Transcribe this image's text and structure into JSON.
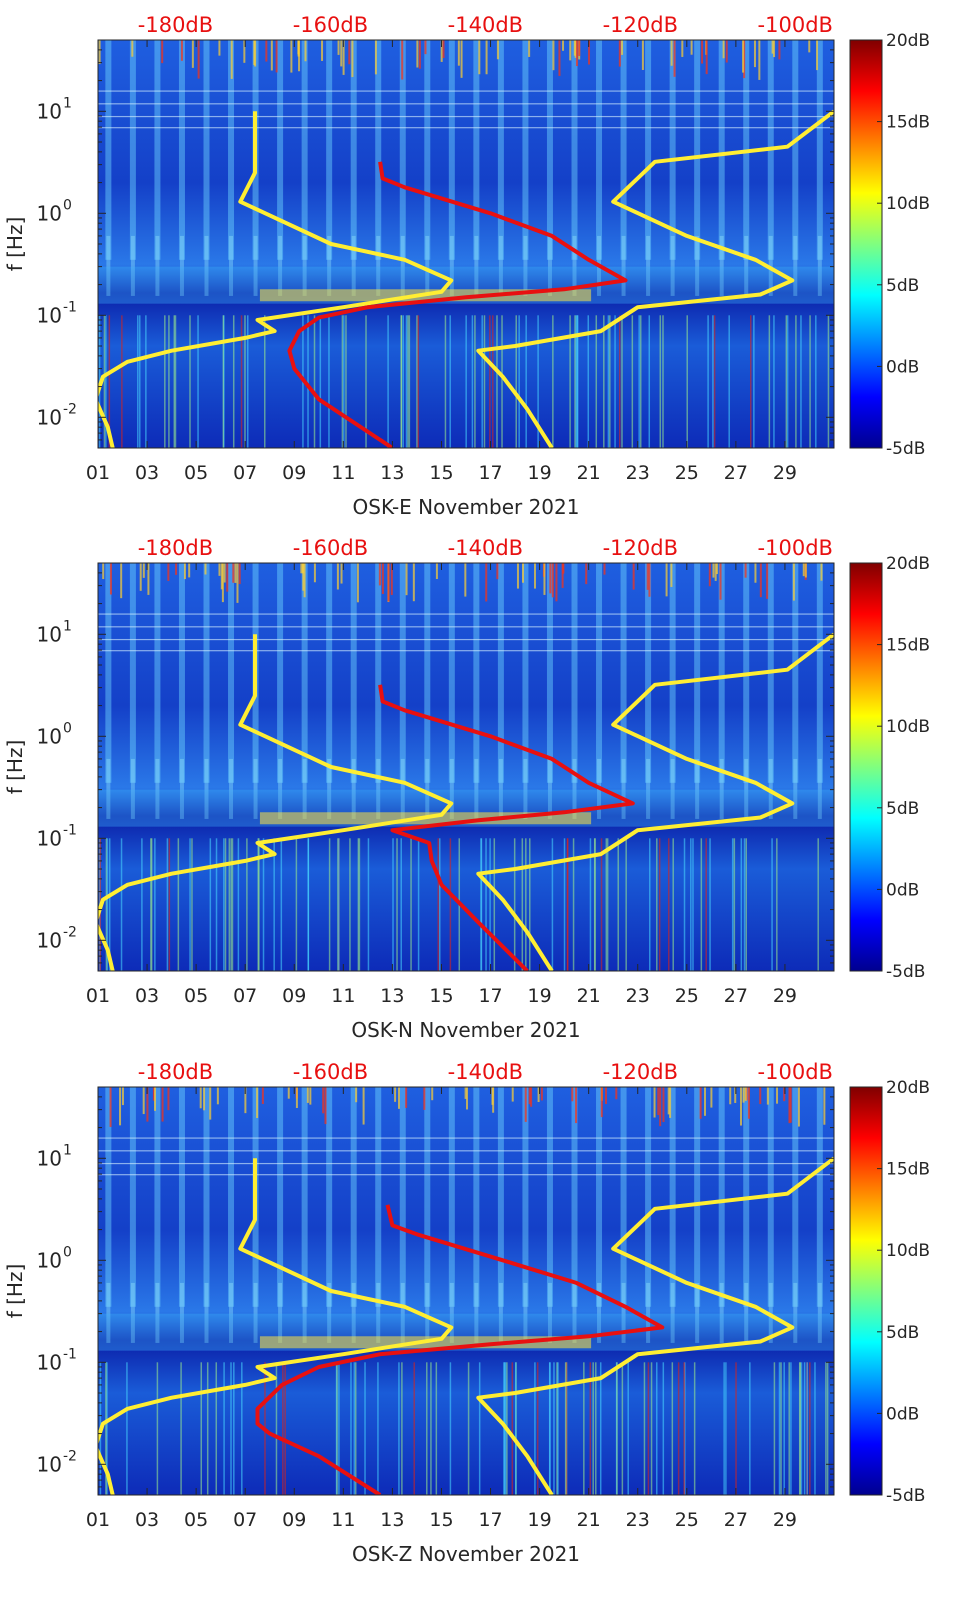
{
  "chart_data": [
    {
      "type": "heatmap",
      "title": "",
      "xlabel": "OSK-E November 2021",
      "ylabel": "f [Hz]",
      "x_ticks": [
        "01",
        "03",
        "05",
        "07",
        "09",
        "11",
        "13",
        "15",
        "17",
        "19",
        "21",
        "23",
        "25",
        "27",
        "29"
      ],
      "x_range_days": [
        1,
        31
      ],
      "y_scale": "log",
      "y_range_hz": [
        0.005,
        50
      ],
      "y_ticks": [
        {
          "value": 0.01,
          "base": "10",
          "exp": "-2"
        },
        {
          "value": 0.1,
          "base": "10",
          "exp": "-1"
        },
        {
          "value": 1,
          "base": "10",
          "exp": "0"
        },
        {
          "value": 10,
          "base": "10",
          "exp": "1"
        }
      ],
      "top_axis_ticks": [
        "-180dB",
        "-160dB",
        "-140dB",
        "-120dB",
        "-100dB"
      ],
      "top_axis_range_db": [
        -190,
        -95
      ],
      "colorbar": {
        "ticks": [
          "20dB",
          "15dB",
          "10dB",
          "5dB",
          "0dB",
          "-5dB"
        ],
        "range_db": [
          -5,
          20
        ],
        "colormap": "jet"
      },
      "series": [
        {
          "color": "#ffee33",
          "points": [
            [
              7.4,
              10
            ],
            [
              7.4,
              2.5
            ],
            [
              6.8,
              1.3
            ],
            [
              10.5,
              0.5
            ],
            [
              13.5,
              0.35
            ],
            [
              15.4,
              0.22
            ],
            [
              15.0,
              0.17
            ],
            [
              11.0,
              0.12
            ],
            [
              7.5,
              0.09
            ],
            [
              8.2,
              0.07
            ],
            [
              7.0,
              0.06
            ],
            [
              4.0,
              0.045
            ],
            [
              2.2,
              0.035
            ],
            [
              1.2,
              0.025
            ],
            [
              0.9,
              0.015
            ],
            [
              1.4,
              0.008
            ],
            [
              1.6,
              0.005
            ]
          ]
        },
        {
          "color": "#ffee33",
          "points": [
            [
              31.0,
              10
            ],
            [
              29.1,
              4.5
            ],
            [
              23.7,
              3.2
            ],
            [
              22.0,
              1.3
            ],
            [
              25.0,
              0.6
            ],
            [
              27.8,
              0.35
            ],
            [
              29.3,
              0.22
            ],
            [
              28.0,
              0.16
            ],
            [
              23.0,
              0.12
            ],
            [
              21.5,
              0.07
            ],
            [
              18.0,
              0.05
            ],
            [
              16.5,
              0.045
            ],
            [
              17.5,
              0.025
            ],
            [
              18.5,
              0.012
            ],
            [
              19.5,
              0.005
            ]
          ]
        },
        {
          "color": "#e81010",
          "points": [
            [
              12.5,
              3.2
            ],
            [
              12.6,
              2.2
            ],
            [
              13.5,
              1.8
            ],
            [
              17.0,
              1.0
            ],
            [
              19.5,
              0.6
            ],
            [
              21.0,
              0.35
            ],
            [
              22.5,
              0.22
            ],
            [
              20.0,
              0.18
            ],
            [
              16.0,
              0.15
            ],
            [
              12.0,
              0.12
            ],
            [
              10.0,
              0.095
            ],
            [
              9.2,
              0.07
            ],
            [
              8.8,
              0.045
            ],
            [
              9.0,
              0.03
            ],
            [
              10.0,
              0.015
            ],
            [
              13.0,
              0.005
            ]
          ]
        }
      ]
    },
    {
      "type": "heatmap",
      "title": "",
      "xlabel": "OSK-N November 2021",
      "ylabel": "f [Hz]",
      "x_ticks": [
        "01",
        "03",
        "05",
        "07",
        "09",
        "11",
        "13",
        "15",
        "17",
        "19",
        "21",
        "23",
        "25",
        "27",
        "29"
      ],
      "x_range_days": [
        1,
        31
      ],
      "y_scale": "log",
      "y_range_hz": [
        0.005,
        50
      ],
      "y_ticks": [
        {
          "value": 0.01,
          "base": "10",
          "exp": "-2"
        },
        {
          "value": 0.1,
          "base": "10",
          "exp": "-1"
        },
        {
          "value": 1,
          "base": "10",
          "exp": "0"
        },
        {
          "value": 10,
          "base": "10",
          "exp": "1"
        }
      ],
      "top_axis_ticks": [
        "-180dB",
        "-160dB",
        "-140dB",
        "-120dB",
        "-100dB"
      ],
      "top_axis_range_db": [
        -190,
        -95
      ],
      "colorbar": {
        "ticks": [
          "20dB",
          "15dB",
          "10dB",
          "5dB",
          "0dB",
          "-5dB"
        ],
        "range_db": [
          -5,
          20
        ],
        "colormap": "jet"
      },
      "series": [
        {
          "color": "#ffee33",
          "points": [
            [
              7.4,
              10
            ],
            [
              7.4,
              2.5
            ],
            [
              6.8,
              1.3
            ],
            [
              10.5,
              0.5
            ],
            [
              13.5,
              0.35
            ],
            [
              15.4,
              0.22
            ],
            [
              15.0,
              0.17
            ],
            [
              11.0,
              0.12
            ],
            [
              7.5,
              0.09
            ],
            [
              8.2,
              0.07
            ],
            [
              7.0,
              0.06
            ],
            [
              4.0,
              0.045
            ],
            [
              2.2,
              0.035
            ],
            [
              1.2,
              0.025
            ],
            [
              0.9,
              0.015
            ],
            [
              1.4,
              0.008
            ],
            [
              1.6,
              0.005
            ]
          ]
        },
        {
          "color": "#ffee33",
          "points": [
            [
              31.0,
              10
            ],
            [
              29.1,
              4.5
            ],
            [
              23.7,
              3.2
            ],
            [
              22.0,
              1.3
            ],
            [
              25.0,
              0.6
            ],
            [
              27.8,
              0.35
            ],
            [
              29.3,
              0.22
            ],
            [
              28.0,
              0.16
            ],
            [
              23.0,
              0.12
            ],
            [
              21.5,
              0.07
            ],
            [
              18.0,
              0.05
            ],
            [
              16.5,
              0.045
            ],
            [
              17.5,
              0.025
            ],
            [
              18.5,
              0.012
            ],
            [
              19.5,
              0.005
            ]
          ]
        },
        {
          "color": "#e81010",
          "points": [
            [
              12.5,
              3.2
            ],
            [
              12.6,
              2.2
            ],
            [
              13.5,
              1.8
            ],
            [
              17.0,
              1.0
            ],
            [
              19.5,
              0.6
            ],
            [
              21.0,
              0.35
            ],
            [
              22.8,
              0.22
            ],
            [
              20.0,
              0.18
            ],
            [
              16.5,
              0.15
            ],
            [
              13.0,
              0.12
            ],
            [
              14.5,
              0.09
            ],
            [
              14.6,
              0.06
            ],
            [
              15.0,
              0.035
            ],
            [
              16.5,
              0.015
            ],
            [
              18.5,
              0.005
            ]
          ]
        }
      ]
    },
    {
      "type": "heatmap",
      "title": "",
      "xlabel": "OSK-Z November 2021",
      "ylabel": "f [Hz]",
      "x_ticks": [
        "01",
        "03",
        "05",
        "07",
        "09",
        "11",
        "13",
        "15",
        "17",
        "19",
        "21",
        "23",
        "25",
        "27",
        "29"
      ],
      "x_range_days": [
        1,
        31
      ],
      "y_scale": "log",
      "y_range_hz": [
        0.005,
        50
      ],
      "y_ticks": [
        {
          "value": 0.01,
          "base": "10",
          "exp": "-2"
        },
        {
          "value": 0.1,
          "base": "10",
          "exp": "-1"
        },
        {
          "value": 1,
          "base": "10",
          "exp": "0"
        },
        {
          "value": 10,
          "base": "10",
          "exp": "1"
        }
      ],
      "top_axis_ticks": [
        "-180dB",
        "-160dB",
        "-140dB",
        "-120dB",
        "-100dB"
      ],
      "top_axis_range_db": [
        -190,
        -95
      ],
      "colorbar": {
        "ticks": [
          "20dB",
          "15dB",
          "10dB",
          "5dB",
          "0dB",
          "-5dB"
        ],
        "range_db": [
          -5,
          20
        ],
        "colormap": "jet"
      },
      "series": [
        {
          "color": "#ffee33",
          "points": [
            [
              7.4,
              10
            ],
            [
              7.4,
              2.5
            ],
            [
              6.8,
              1.3
            ],
            [
              10.5,
              0.5
            ],
            [
              13.5,
              0.35
            ],
            [
              15.4,
              0.22
            ],
            [
              15.0,
              0.17
            ],
            [
              11.0,
              0.12
            ],
            [
              7.5,
              0.09
            ],
            [
              8.2,
              0.07
            ],
            [
              7.0,
              0.06
            ],
            [
              4.0,
              0.045
            ],
            [
              2.2,
              0.035
            ],
            [
              1.2,
              0.025
            ],
            [
              0.9,
              0.015
            ],
            [
              1.4,
              0.008
            ],
            [
              1.6,
              0.005
            ]
          ]
        },
        {
          "color": "#ffee33",
          "points": [
            [
              31.0,
              10
            ],
            [
              29.1,
              4.5
            ],
            [
              23.7,
              3.2
            ],
            [
              22.0,
              1.3
            ],
            [
              25.0,
              0.6
            ],
            [
              27.8,
              0.35
            ],
            [
              29.3,
              0.22
            ],
            [
              28.0,
              0.16
            ],
            [
              23.0,
              0.12
            ],
            [
              21.5,
              0.07
            ],
            [
              18.0,
              0.05
            ],
            [
              16.5,
              0.045
            ],
            [
              17.5,
              0.025
            ],
            [
              18.5,
              0.012
            ],
            [
              19.5,
              0.005
            ]
          ]
        },
        {
          "color": "#e81010",
          "points": [
            [
              12.8,
              3.5
            ],
            [
              13.0,
              2.2
            ],
            [
              14.0,
              1.8
            ],
            [
              17.5,
              1.0
            ],
            [
              20.5,
              0.6
            ],
            [
              22.5,
              0.35
            ],
            [
              24.0,
              0.22
            ],
            [
              21.0,
              0.18
            ],
            [
              17.0,
              0.15
            ],
            [
              12.5,
              0.12
            ],
            [
              10.0,
              0.09
            ],
            [
              8.5,
              0.06
            ],
            [
              7.5,
              0.035
            ],
            [
              7.5,
              0.025
            ],
            [
              8.0,
              0.02
            ],
            [
              10.0,
              0.012
            ],
            [
              12.5,
              0.005
            ]
          ]
        }
      ]
    }
  ]
}
